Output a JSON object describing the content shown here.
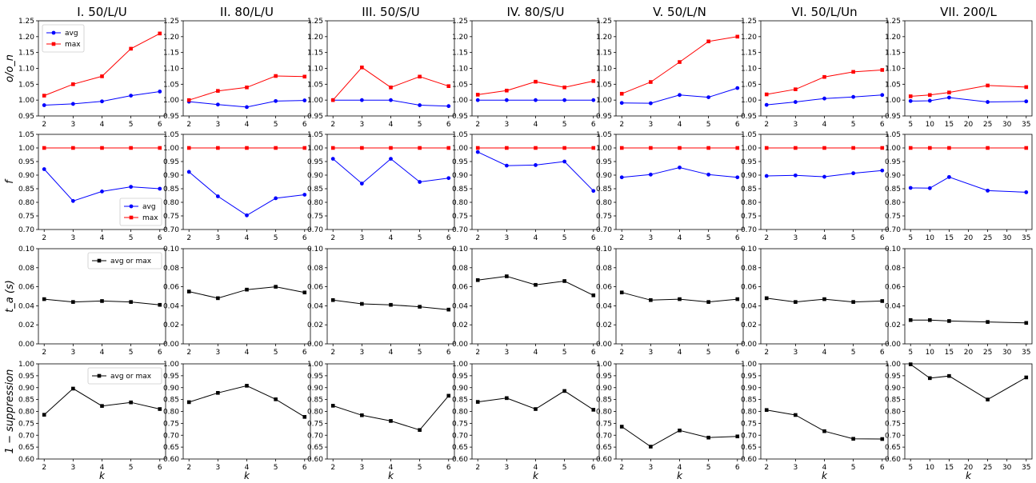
{
  "chart_data": {
    "type": "line",
    "columns": [
      {
        "title": "I. 50/L/U",
        "x": [
          2,
          3,
          4,
          5,
          6
        ],
        "xticks": [
          2,
          3,
          4,
          5,
          6
        ],
        "xlim": [
          1.8,
          6.2
        ]
      },
      {
        "title": "II. 80/L/U",
        "x": [
          2,
          3,
          4,
          5,
          6
        ],
        "xticks": [
          2,
          3,
          4,
          5,
          6
        ],
        "xlim": [
          1.8,
          6.2
        ]
      },
      {
        "title": "III. 50/S/U",
        "x": [
          2,
          3,
          4,
          5,
          6
        ],
        "xticks": [
          2,
          3,
          4,
          5,
          6
        ],
        "xlim": [
          1.8,
          6.2
        ]
      },
      {
        "title": "IV. 80/S/U",
        "x": [
          2,
          3,
          4,
          5,
          6
        ],
        "xticks": [
          2,
          3,
          4,
          5,
          6
        ],
        "xlim": [
          1.8,
          6.2
        ]
      },
      {
        "title": "V. 50/L/N",
        "x": [
          2,
          3,
          4,
          5,
          6
        ],
        "xticks": [
          2,
          3,
          4,
          5,
          6
        ],
        "xlim": [
          1.8,
          6.2
        ]
      },
      {
        "title": "VI. 50/L/Un",
        "x": [
          2,
          3,
          4,
          5,
          6
        ],
        "xticks": [
          2,
          3,
          4,
          5,
          6
        ],
        "xlim": [
          1.8,
          6.2
        ]
      },
      {
        "title": "VII. 200/L",
        "x": [
          5,
          10,
          15,
          25,
          35
        ],
        "xticks": [
          5,
          10,
          15,
          20,
          25,
          30,
          35
        ],
        "xlim": [
          3.5,
          36.5
        ]
      }
    ],
    "rows": [
      {
        "ylabel": "o/o_n",
        "ylim": [
          0.95,
          1.25
        ],
        "yticks": [
          "0.95",
          "1.00",
          "1.05",
          "1.10",
          "1.15",
          "1.20",
          "1.25"
        ],
        "legend": {
          "column": 0,
          "position": "upper-left"
        },
        "series": [
          {
            "name": "avg",
            "color": "#0000ff",
            "marker": "circle",
            "values": [
              [
                0.984,
                0.988,
                0.996,
                1.014,
                1.027
              ],
              [
                0.995,
                0.986,
                0.978,
                0.997,
                0.999
              ],
              [
                1.0,
                1.0,
                1.0,
                0.984,
                0.981
              ],
              [
                1.0,
                1.0,
                1.0,
                1.0,
                1.0
              ],
              [
                0.991,
                0.99,
                1.016,
                1.009,
                1.038
              ],
              [
                0.985,
                0.994,
                1.005,
                1.01,
                1.016
              ],
              [
                0.997,
                0.998,
                1.008,
                0.994,
                0.996
              ]
            ]
          },
          {
            "name": "max",
            "color": "#ff0000",
            "marker": "square",
            "values": [
              [
                1.014,
                1.05,
                1.075,
                1.162,
                1.21
              ],
              [
                1.0,
                1.029,
                1.04,
                1.076,
                1.074
              ],
              [
                1.0,
                1.103,
                1.04,
                1.074,
                1.044
              ],
              [
                1.017,
                1.03,
                1.058,
                1.04,
                1.06
              ],
              [
                1.02,
                1.057,
                1.12,
                1.185,
                1.2
              ],
              [
                1.018,
                1.034,
                1.073,
                1.089,
                1.095
              ],
              [
                1.012,
                1.016,
                1.024,
                1.046,
                1.041
              ]
            ]
          }
        ]
      },
      {
        "ylabel": "f",
        "ylim": [
          0.7,
          1.05
        ],
        "yticks": [
          "0.70",
          "0.75",
          "0.80",
          "0.85",
          "0.90",
          "0.95",
          "1.00",
          "1.05"
        ],
        "legend": {
          "column": 0,
          "position": "lower-right"
        },
        "series": [
          {
            "name": "avg",
            "color": "#0000ff",
            "marker": "circle",
            "values": [
              [
                0.922,
                0.805,
                0.84,
                0.857,
                0.85
              ],
              [
                0.912,
                0.822,
                0.752,
                0.815,
                0.828
              ],
              [
                0.96,
                0.869,
                0.96,
                0.875,
                0.889
              ],
              [
                0.985,
                0.935,
                0.937,
                0.95,
                0.842
              ],
              [
                0.892,
                0.902,
                0.928,
                0.902,
                0.892
              ],
              [
                0.897,
                0.899,
                0.894,
                0.907,
                0.917
              ],
              [
                0.853,
                0.852,
                0.893,
                0.843,
                0.837
              ]
            ]
          },
          {
            "name": "max",
            "color": "#ff0000",
            "marker": "square",
            "values": [
              [
                1.0,
                1.0,
                1.0,
                1.0,
                1.0
              ],
              [
                1.0,
                1.0,
                1.0,
                1.0,
                1.0
              ],
              [
                1.0,
                1.0,
                1.0,
                1.0,
                1.0
              ],
              [
                1.0,
                1.0,
                1.0,
                1.0,
                1.0
              ],
              [
                1.0,
                1.0,
                1.0,
                1.0,
                1.0
              ],
              [
                1.0,
                1.0,
                1.0,
                1.0,
                1.0
              ],
              [
                1.0,
                1.0,
                1.0,
                1.0,
                1.0
              ]
            ]
          }
        ]
      },
      {
        "ylabel": "t_a (s)",
        "ylim": [
          0.0,
          0.1
        ],
        "yticks": [
          "0.00",
          "0.02",
          "0.04",
          "0.06",
          "0.08",
          "0.10"
        ],
        "legend": {
          "column": 0,
          "position": "upper-right"
        },
        "series": [
          {
            "name": "avg or max",
            "color": "#000000",
            "marker": "square",
            "values": [
              [
                0.047,
                0.044,
                0.045,
                0.044,
                0.041
              ],
              [
                0.055,
                0.048,
                0.057,
                0.06,
                0.054
              ],
              [
                0.046,
                0.042,
                0.041,
                0.039,
                0.036
              ],
              [
                0.067,
                0.071,
                0.062,
                0.066,
                0.051
              ],
              [
                0.054,
                0.046,
                0.047,
                0.044,
                0.047
              ],
              [
                0.048,
                0.044,
                0.047,
                0.044,
                0.045
              ],
              [
                0.025,
                0.025,
                0.024,
                0.023,
                0.022
              ]
            ]
          }
        ]
      },
      {
        "ylabel": "1 − suppression",
        "ylim": [
          0.6,
          1.0
        ],
        "yticks": [
          "0.60",
          "0.65",
          "0.70",
          "0.75",
          "0.80",
          "0.85",
          "0.90",
          "0.95",
          "1.00"
        ],
        "legend": {
          "column": 0,
          "position": "upper-right"
        },
        "series": [
          {
            "name": "avg or max",
            "color": "#000000",
            "marker": "square",
            "values": [
              [
                0.786,
                0.896,
                0.823,
                0.838,
                0.81
              ],
              [
                0.839,
                0.878,
                0.908,
                0.851,
                0.777
              ],
              [
                0.824,
                0.784,
                0.76,
                0.722,
                0.866
              ],
              [
                0.84,
                0.856,
                0.81,
                0.886,
                0.807
              ],
              [
                0.736,
                0.652,
                0.72,
                0.69,
                0.695
              ],
              [
                0.806,
                0.785,
                0.717,
                0.685,
                0.684
              ],
              [
                0.998,
                0.94,
                0.949,
                0.85,
                0.943
              ]
            ]
          }
        ]
      }
    ],
    "xlabel": "k"
  }
}
